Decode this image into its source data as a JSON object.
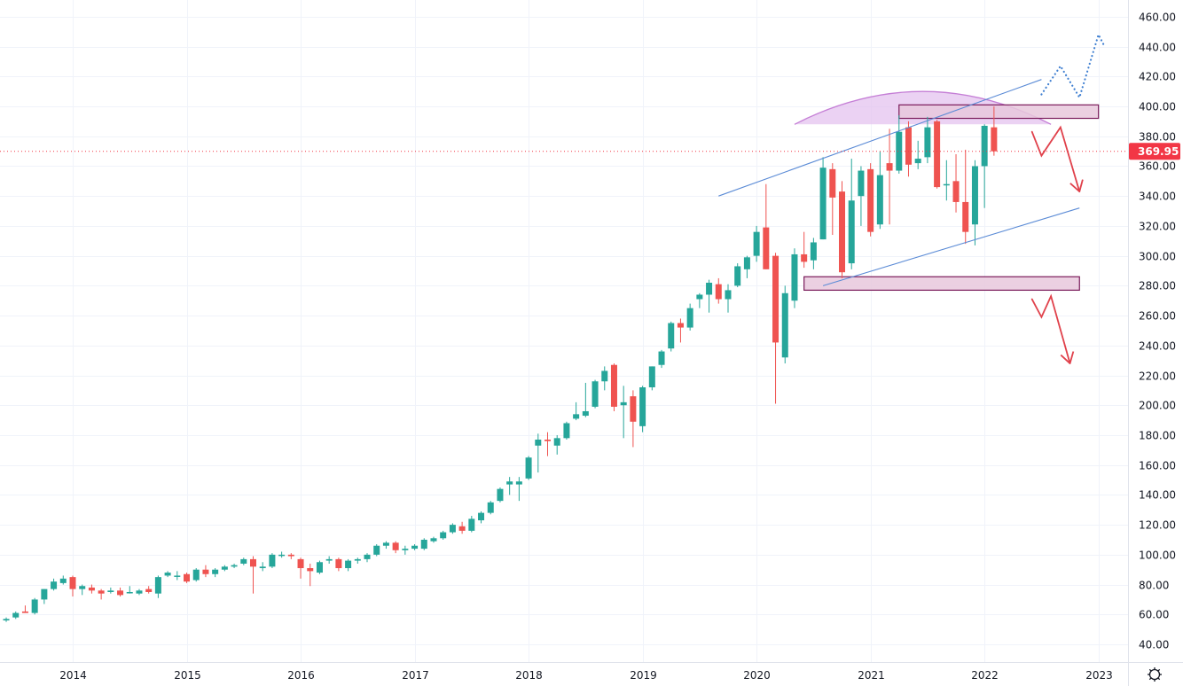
{
  "chart_data": {
    "type": "candlestick",
    "interval": "monthly",
    "title": "",
    "xlabel": "",
    "ylabel": "",
    "ylim": [
      28,
      471
    ],
    "grid": true,
    "last_price": 369.95,
    "last_price_label": "369.95",
    "colors": {
      "up": "#26a69a",
      "down": "#ef5350",
      "grid": "#f0f3fa",
      "last_price": "#f23645",
      "channel": "#5b8bd6",
      "zone_fill": "#e8c8dc",
      "zone_border": "#7a1b5a",
      "arc": "#c57fd6",
      "projection_down": "#e0414b",
      "projection_up": "#3f7fd1"
    },
    "x_tick_labels": [
      "2014",
      "2015",
      "2016",
      "2017",
      "2018",
      "2019",
      "2020",
      "2021",
      "2022",
      "2023"
    ],
    "y_tick_labels": [
      "40.00",
      "60.00",
      "80.00",
      "100.00",
      "120.00",
      "140.00",
      "160.00",
      "180.00",
      "200.00",
      "220.00",
      "240.00",
      "260.00",
      "280.00",
      "300.00",
      "320.00",
      "340.00",
      "360.00",
      "380.00",
      "400.00",
      "420.00",
      "440.00",
      "460.00"
    ],
    "y_ticks": [
      40,
      60,
      80,
      100,
      120,
      140,
      160,
      180,
      200,
      220,
      240,
      260,
      280,
      300,
      320,
      340,
      360,
      380,
      400,
      420,
      440,
      460
    ],
    "candle_fields": [
      "month",
      "open",
      "high",
      "low",
      "close"
    ],
    "candles": [
      [
        "2013-05",
        54,
        56,
        53,
        55
      ],
      [
        "2013-06",
        56,
        58,
        55,
        57
      ],
      [
        "2013-07",
        58,
        62,
        57,
        61
      ],
      [
        "2013-08",
        62,
        66,
        61,
        61
      ],
      [
        "2013-09",
        61,
        71,
        60,
        70
      ],
      [
        "2013-10",
        70,
        77,
        67,
        77
      ],
      [
        "2013-11",
        77,
        84,
        76,
        82
      ],
      [
        "2013-12",
        81,
        86,
        80,
        84
      ],
      [
        "2014-01",
        85,
        86,
        72,
        77
      ],
      [
        "2014-02",
        77,
        80,
        73,
        79
      ],
      [
        "2014-03",
        78,
        80,
        74,
        76
      ],
      [
        "2014-04",
        76,
        77,
        70,
        74
      ],
      [
        "2014-05",
        75,
        78,
        74,
        76
      ],
      [
        "2014-06",
        76,
        78,
        72,
        73
      ],
      [
        "2014-07",
        75,
        79,
        74,
        75
      ],
      [
        "2014-08",
        74,
        77,
        73,
        76
      ],
      [
        "2014-09",
        77,
        79,
        74,
        75
      ],
      [
        "2014-10",
        74,
        86,
        71,
        85
      ],
      [
        "2014-11",
        86,
        89,
        85,
        88
      ],
      [
        "2014-12",
        86,
        89,
        83,
        86
      ],
      [
        "2015-01",
        87,
        88,
        81,
        82
      ],
      [
        "2015-02",
        83,
        91,
        82,
        90
      ],
      [
        "2015-03",
        90,
        93,
        85,
        87
      ],
      [
        "2015-04",
        87,
        91,
        85,
        90
      ],
      [
        "2015-05",
        90,
        93,
        89,
        92
      ],
      [
        "2015-06",
        92,
        94,
        91,
        93
      ],
      [
        "2015-07",
        94,
        98,
        93,
        97
      ],
      [
        "2015-08",
        97,
        99,
        74,
        92
      ],
      [
        "2015-09",
        91,
        95,
        89,
        92
      ],
      [
        "2015-10",
        92,
        101,
        91,
        100
      ],
      [
        "2015-11",
        100,
        102,
        98,
        100
      ],
      [
        "2015-12",
        100,
        101,
        97,
        99
      ],
      [
        "2016-01",
        97,
        98,
        84,
        91
      ],
      [
        "2016-02",
        91,
        94,
        79,
        89
      ],
      [
        "2016-03",
        88,
        96,
        87,
        95
      ],
      [
        "2016-04",
        96,
        99,
        94,
        97
      ],
      [
        "2016-05",
        97,
        98,
        89,
        91
      ],
      [
        "2016-06",
        91,
        97,
        89,
        96
      ],
      [
        "2016-07",
        96,
        98,
        94,
        97
      ],
      [
        "2016-08",
        97,
        101,
        95,
        100
      ],
      [
        "2016-09",
        100,
        107,
        99,
        106
      ],
      [
        "2016-10",
        106,
        109,
        104,
        108
      ],
      [
        "2016-11",
        108,
        109,
        101,
        103
      ],
      [
        "2016-12",
        103,
        106,
        100,
        104
      ],
      [
        "2017-01",
        104,
        107,
        103,
        106
      ],
      [
        "2017-02",
        104,
        111,
        103,
        110
      ],
      [
        "2017-03",
        109,
        112,
        108,
        111
      ],
      [
        "2017-04",
        111,
        116,
        110,
        115
      ],
      [
        "2017-05",
        115,
        121,
        114,
        120
      ],
      [
        "2017-06",
        119,
        122,
        114,
        116
      ],
      [
        "2017-07",
        116,
        126,
        115,
        124
      ],
      [
        "2017-08",
        123,
        129,
        121,
        128
      ],
      [
        "2017-09",
        128,
        136,
        127,
        135
      ],
      [
        "2017-10",
        136,
        145,
        135,
        144
      ],
      [
        "2017-11",
        147,
        152,
        140,
        149
      ],
      [
        "2017-12",
        147,
        152,
        136,
        149
      ],
      [
        "2018-01",
        151,
        166,
        150,
        165
      ],
      [
        "2018-02",
        173,
        181,
        155,
        177
      ],
      [
        "2018-03",
        177,
        182,
        166,
        176
      ],
      [
        "2018-04",
        173,
        180,
        167,
        178
      ],
      [
        "2018-05",
        178,
        189,
        177,
        188
      ],
      [
        "2018-06",
        191,
        202,
        190,
        194
      ],
      [
        "2018-07",
        193,
        215,
        192,
        196
      ],
      [
        "2018-08",
        199,
        217,
        198,
        216
      ],
      [
        "2018-09",
        216,
        226,
        210,
        223
      ],
      [
        "2018-10",
        227,
        228,
        196,
        199
      ],
      [
        "2018-11",
        200,
        213,
        178,
        202
      ],
      [
        "2018-12",
        206,
        210,
        172,
        189
      ],
      [
        "2019-01",
        186,
        213,
        182,
        212
      ],
      [
        "2019-02",
        212,
        226,
        210,
        226
      ],
      [
        "2019-03",
        227,
        237,
        225,
        236
      ],
      [
        "2019-04",
        238,
        256,
        236,
        255
      ],
      [
        "2019-05",
        255,
        258,
        242,
        252
      ],
      [
        "2019-06",
        252,
        268,
        250,
        265
      ],
      [
        "2019-07",
        271,
        275,
        265,
        274
      ],
      [
        "2019-08",
        274,
        284,
        262,
        282
      ],
      [
        "2019-09",
        281,
        285,
        268,
        271
      ],
      [
        "2019-10",
        271,
        281,
        262,
        277
      ],
      [
        "2019-11",
        280,
        295,
        279,
        293
      ],
      [
        "2019-12",
        291,
        300,
        285,
        299
      ],
      [
        "2020-01",
        300,
        320,
        296,
        316
      ],
      [
        "2020-02",
        319,
        348,
        291,
        291
      ],
      [
        "2020-03",
        300,
        302,
        201,
        242
      ],
      [
        "2020-04",
        232,
        280,
        228,
        275
      ],
      [
        "2020-05",
        270,
        305,
        265,
        301
      ],
      [
        "2020-06",
        301,
        316,
        292,
        296
      ],
      [
        "2020-07",
        297,
        312,
        291,
        309
      ],
      [
        "2020-08",
        311,
        366,
        311,
        359
      ],
      [
        "2020-09",
        358,
        362,
        314,
        339
      ],
      [
        "2020-10",
        343,
        350,
        285,
        289
      ],
      [
        "2020-11",
        295,
        365,
        291,
        337
      ],
      [
        "2020-12",
        340,
        360,
        320,
        357
      ],
      [
        "2021-01",
        358,
        362,
        313,
        316
      ],
      [
        "2021-02",
        321,
        370,
        318,
        354
      ],
      [
        "2021-03",
        362,
        385,
        321,
        357
      ],
      [
        "2021-04",
        357,
        394,
        355,
        383
      ],
      [
        "2021-05",
        386,
        390,
        353,
        361
      ],
      [
        "2021-06",
        362,
        377,
        358,
        365
      ],
      [
        "2021-07",
        366,
        393,
        362,
        386
      ],
      [
        "2021-08",
        390,
        391,
        345,
        346
      ],
      [
        "2021-09",
        348,
        364,
        337,
        348
      ],
      [
        "2021-10",
        350,
        368,
        329,
        336
      ],
      [
        "2021-11",
        336,
        371,
        308,
        316
      ],
      [
        "2021-12",
        321,
        364,
        307,
        360
      ],
      [
        "2022-01",
        360,
        388,
        332,
        387
      ],
      [
        "2022-02",
        386,
        400,
        367,
        369.95
      ]
    ],
    "annotations": {
      "resistance_zone": {
        "from": "2021-04",
        "to": "2023-01",
        "price_low": 392,
        "price_high": 401
      },
      "support_zone": {
        "from": "2020-06",
        "to": "2022-11",
        "price_low": 277,
        "price_high": 286
      },
      "channel_upper": [
        [
          "2019-09",
          340
        ],
        [
          "2022-07",
          418
        ]
      ],
      "channel_lower": [
        [
          "2020-08",
          280
        ],
        [
          "2022-11",
          332
        ]
      ],
      "arc_top": {
        "from": "2020-05",
        "to": "2022-08",
        "peak_price": 410,
        "base_price": 388
      },
      "bearish_projection_1": [
        [
          "2022-06",
          383
        ],
        [
          "2022-07",
          367
        ],
        [
          "2022-09",
          386
        ],
        [
          "2022-11",
          343
        ]
      ],
      "bearish_projection_2": [
        [
          "2022-06",
          271
        ],
        [
          "2022-07",
          259
        ],
        [
          "2022-08",
          273
        ],
        [
          "2022-10",
          228
        ]
      ],
      "bullish_projection": [
        [
          "2022-07",
          408
        ],
        [
          "2022-09",
          427
        ],
        [
          "2022-11",
          406
        ],
        [
          "2023-01",
          448
        ],
        [
          "2023-01",
          440
        ]
      ]
    }
  },
  "ui": {
    "settings_icon": "gear-icon"
  }
}
